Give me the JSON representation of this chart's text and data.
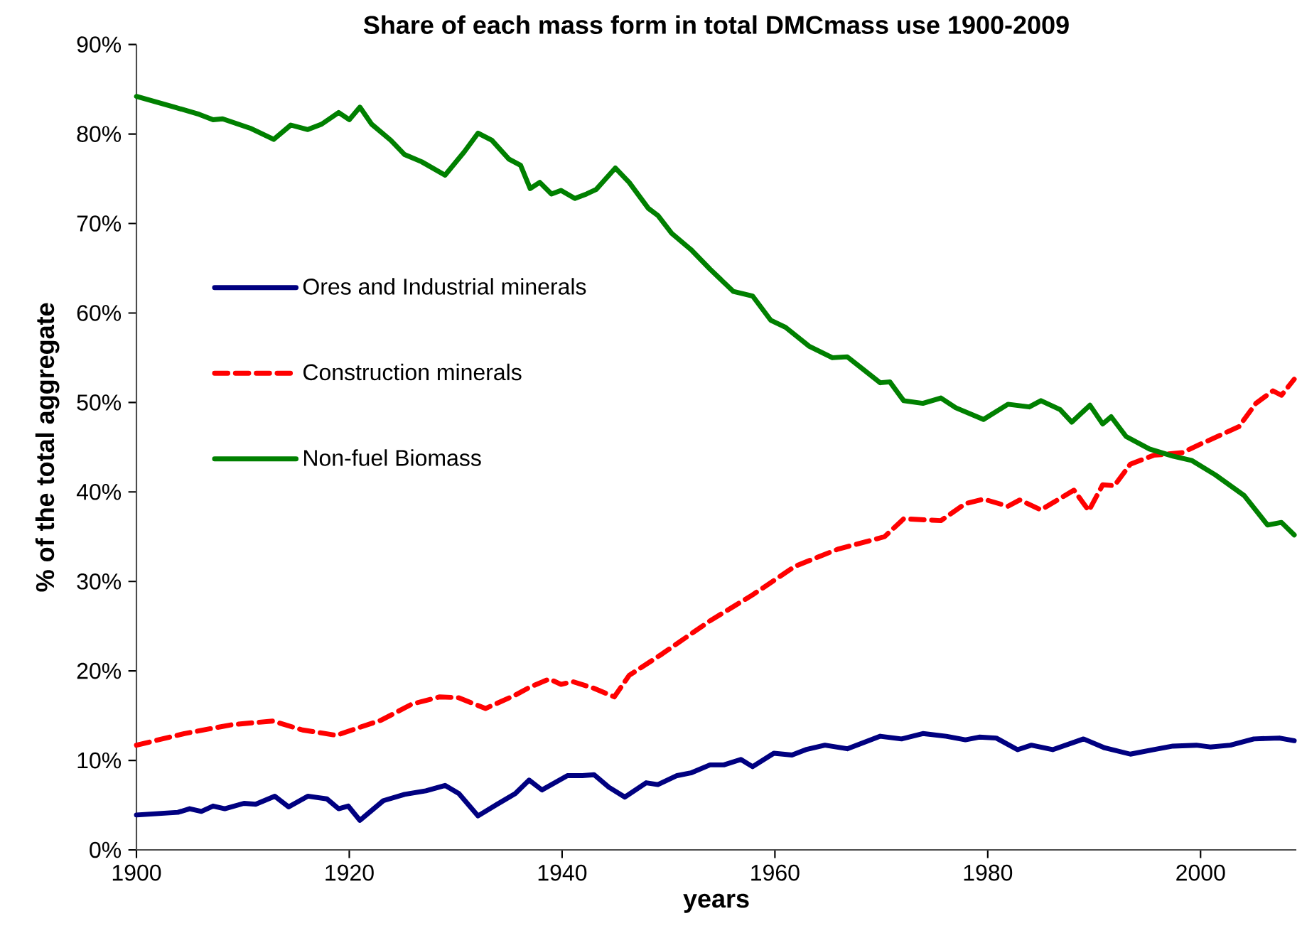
{
  "chart_data": {
    "type": "line",
    "title": "Share of each mass form in total DMCmass use 1900-2009",
    "xlabel": "years",
    "ylabel": "% of the total aggregate",
    "xlim": [
      1900,
      2009
    ],
    "xticks": [
      1900,
      1920,
      1940,
      1960,
      1980,
      2000
    ],
    "ylim": [
      0,
      90
    ],
    "yticks": [
      {
        "value": 0,
        "label": "0%"
      },
      {
        "value": 10,
        "label": "10%"
      },
      {
        "value": 20,
        "label": "20%"
      },
      {
        "value": 30,
        "label": "30%"
      },
      {
        "value": 40,
        "label": "40%"
      },
      {
        "value": 50,
        "label": "50%"
      },
      {
        "value": 60,
        "label": "60%"
      },
      {
        "value": 70,
        "label": "70%"
      },
      {
        "value": 80,
        "label": "80%"
      },
      {
        "value": 90,
        "label": "90%"
      }
    ],
    "grid": false,
    "legend": "center left",
    "marker": "none",
    "series": [
      {
        "name": "Ores and Industrial minerals",
        "color": "#000080",
        "line_style": "solid",
        "x": [
          1900,
          1903.9,
          1905,
          1906.1,
          1907.2,
          1908.3,
          1910.1,
          1911.2,
          1913,
          1914.3,
          1916.1,
          1917.9,
          1919,
          1919.9,
          1921,
          1923.2,
          1925.2,
          1927.2,
          1929,
          1930.3,
          1932.1,
          1933.9,
          1935.6,
          1936.9,
          1938.1,
          1940.5,
          1941.9,
          1943,
          1944.4,
          1945.9,
          1947.9,
          1949,
          1950.8,
          1952.1,
          1953.9,
          1955.2,
          1956.8,
          1957.9,
          1959.9,
          1961.6,
          1962.9,
          1964.7,
          1966.8,
          1969.9,
          1971.9,
          1973.9,
          1976.1,
          1977.9,
          1979.2,
          1980.8,
          1982.8,
          1984.1,
          1986.1,
          1989,
          1991,
          1993.4,
          1995.6,
          1997.4,
          1999.6,
          2000.9,
          2002.8,
          2005,
          2007.4,
          2008.8
        ],
        "values": [
          3.9,
          4.2,
          4.6,
          4.3,
          4.9,
          4.6,
          5.2,
          5.1,
          6.0,
          4.8,
          6.0,
          5.7,
          4.6,
          4.9,
          3.3,
          5.5,
          6.2,
          6.6,
          7.2,
          6.3,
          3.8,
          5.1,
          6.3,
          7.8,
          6.7,
          8.3,
          8.3,
          8.4,
          7.0,
          5.9,
          7.5,
          7.3,
          8.3,
          8.6,
          9.5,
          9.5,
          10.1,
          9.3,
          10.8,
          10.6,
          11.2,
          11.7,
          11.3,
          12.7,
          12.4,
          13.0,
          12.7,
          12.3,
          12.6,
          12.5,
          11.2,
          11.7,
          11.2,
          12.4,
          11.4,
          10.7,
          11.2,
          11.6,
          11.7,
          11.5,
          11.7,
          12.4,
          12.5,
          12.2
        ]
      },
      {
        "name": "Construction minerals",
        "color": "#ff0000",
        "line_style": "dashed",
        "x": [
          1900,
          1904.5,
          1909,
          1912.8,
          1915.6,
          1918.8,
          1921,
          1923,
          1925.9,
          1928.5,
          1930.3,
          1932.8,
          1935.6,
          1937,
          1938.8,
          1939.9,
          1941,
          1942.9,
          1944.9,
          1946.3,
          1949.4,
          1953.9,
          1957.9,
          1961.9,
          1965.9,
          1970.3,
          1972.1,
          1975.6,
          1977.9,
          1979.6,
          1981.9,
          1983,
          1985,
          1988.1,
          1989.5,
          1990.8,
          1991.9,
          1993.4,
          1995.6,
          1998.3,
          2000.1,
          2003.6,
          2005.2,
          2006.8,
          2007.6,
          2008.8
        ],
        "values": [
          11.7,
          13.0,
          14.0,
          14.4,
          13.4,
          12.8,
          13.7,
          14.5,
          16.3,
          17.1,
          17.0,
          15.8,
          17.3,
          18.2,
          19.1,
          18.5,
          18.8,
          18.1,
          17.1,
          19.5,
          21.9,
          25.6,
          28.5,
          31.7,
          33.6,
          35.0,
          37.0,
          36.8,
          38.7,
          39.2,
          38.4,
          39.1,
          38.0,
          40.2,
          37.9,
          40.8,
          40.7,
          43.1,
          44.1,
          44.4,
          45.4,
          47.3,
          49.9,
          51.3,
          50.8,
          52.6
        ]
      },
      {
        "name": "Non-fuel Biomass",
        "color": "#008000",
        "line_style": "solid",
        "x": [
          1900,
          1903.6,
          1905.9,
          1907.2,
          1908.1,
          1910.8,
          1912.9,
          1914.5,
          1916.1,
          1917.4,
          1919,
          1920,
          1921,
          1922.1,
          1923.9,
          1925.2,
          1926.8,
          1929,
          1930.8,
          1932.1,
          1933.4,
          1935,
          1936.1,
          1937,
          1937.9,
          1939,
          1939.9,
          1941.2,
          1942.3,
          1943.2,
          1945,
          1946.3,
          1948.1,
          1949,
          1950.3,
          1952.1,
          1953.9,
          1956.1,
          1957.9,
          1959.6,
          1961,
          1963.2,
          1965.4,
          1966.8,
          1969.9,
          1970.8,
          1972.1,
          1973.9,
          1975.6,
          1977,
          1979.6,
          1981.9,
          1983.9,
          1985,
          1986.8,
          1987.9,
          1989.6,
          1990.8,
          1991.6,
          1993,
          1995.2,
          1997.4,
          1999.2,
          2001.4,
          2004.1,
          2006.3,
          2007.6,
          2008.8
        ],
        "values": [
          84.2,
          83.0,
          82.2,
          81.6,
          81.7,
          80.6,
          79.4,
          81.0,
          80.5,
          81.1,
          82.4,
          81.6,
          83.0,
          81.1,
          79.3,
          77.7,
          76.9,
          75.4,
          78.0,
          80.1,
          79.3,
          77.2,
          76.5,
          73.9,
          74.6,
          73.3,
          73.7,
          72.8,
          73.3,
          73.8,
          76.2,
          74.6,
          71.7,
          70.9,
          68.9,
          67.1,
          64.9,
          62.4,
          61.9,
          59.2,
          58.4,
          56.3,
          55.0,
          55.1,
          52.2,
          52.3,
          50.2,
          49.9,
          50.5,
          49.4,
          48.1,
          49.8,
          49.5,
          50.2,
          49.2,
          47.8,
          49.7,
          47.6,
          48.4,
          46.2,
          44.8,
          44.0,
          43.5,
          41.9,
          39.6,
          36.3,
          36.6,
          35.2
        ]
      }
    ]
  }
}
